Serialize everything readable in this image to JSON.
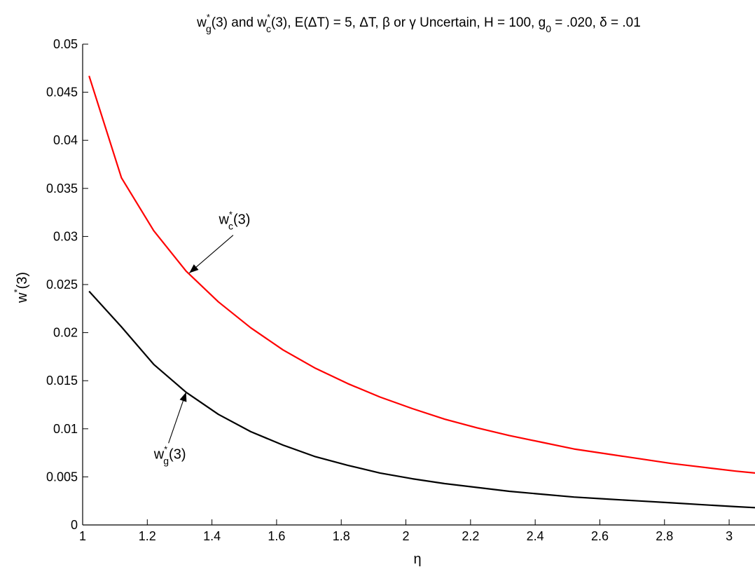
{
  "chart_data": {
    "type": "line",
    "title": {
      "w": "w",
      "star": "*",
      "sub_g": "g",
      "mid1": "(3) and w",
      "sub_c": "c",
      "mid2": "(3), E(ΔT) = 5, ΔT, β or γ Uncertain, H = 100, g",
      "sub_0": "0",
      "end": " = .020, δ = .01"
    },
    "xlabel": "η",
    "ylabel": {
      "base": "w",
      "star": "*",
      "rest": "(3)"
    },
    "xlim": [
      1,
      3.08
    ],
    "ylim": [
      0,
      0.05
    ],
    "grid": false,
    "x_ticks": [
      1,
      1.2,
      1.4,
      1.6,
      1.8,
      2,
      2.2,
      2.4,
      2.6,
      2.8,
      3
    ],
    "x_tick_labels": [
      "1",
      "1.2",
      "1.4",
      "1.6",
      "1.8",
      "2",
      "2.2",
      "2.4",
      "2.6",
      "2.8",
      "3"
    ],
    "y_ticks": [
      0,
      0.005,
      0.01,
      0.015,
      0.02,
      0.025,
      0.03,
      0.035,
      0.04,
      0.045,
      0.05
    ],
    "y_tick_labels": [
      "0",
      "0.005",
      "0.01",
      "0.015",
      "0.02",
      "0.025",
      "0.03",
      "0.035",
      "0.04",
      "0.045",
      "0.05"
    ],
    "x": [
      1.02,
      1.12,
      1.22,
      1.32,
      1.42,
      1.52,
      1.62,
      1.72,
      1.82,
      1.92,
      2.02,
      2.12,
      2.22,
      2.32,
      2.42,
      2.52,
      2.62,
      2.72,
      2.82,
      2.92,
      3.02,
      3.08
    ],
    "series": [
      {
        "color": "#ff0000",
        "values": [
          0.0467,
          0.0361,
          0.0306,
          0.0264,
          0.0232,
          0.0205,
          0.0182,
          0.0163,
          0.0147,
          0.0133,
          0.0121,
          0.011,
          0.0101,
          0.0093,
          0.0086,
          0.0079,
          0.0074,
          0.0069,
          0.0064,
          0.006,
          0.0056,
          0.0054
        ]
      },
      {
        "color": "#000000",
        "values": [
          0.0243,
          0.0206,
          0.0167,
          0.0138,
          0.0115,
          0.0097,
          0.0083,
          0.0071,
          0.0062,
          0.0054,
          0.0048,
          0.0043,
          0.0039,
          0.0035,
          0.0032,
          0.0029,
          0.0027,
          0.0025,
          0.0023,
          0.0021,
          0.0019,
          0.0018
        ]
      }
    ],
    "annotations": [
      {
        "base": "w",
        "star": "*",
        "sub": "c",
        "rest": "(3)",
        "x": 1.47,
        "y": 0.0313,
        "arrow_to": [
          1.33,
          0.0262
        ]
      },
      {
        "base": "w",
        "star": "*",
        "sub": "g",
        "rest": "(3)",
        "x": 1.27,
        "y": 0.0069,
        "arrow_to": [
          1.32,
          0.0138
        ]
      }
    ]
  }
}
